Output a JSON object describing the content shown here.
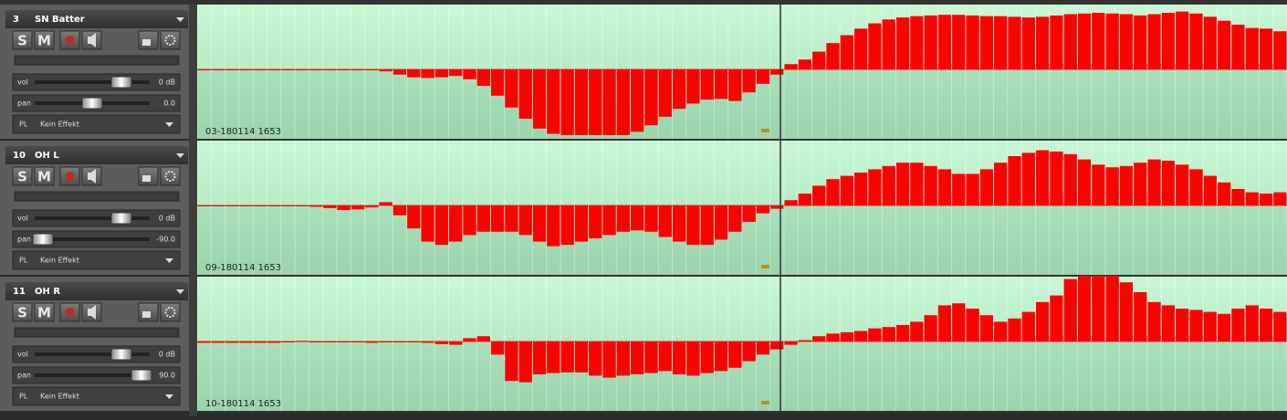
{
  "tracks": [
    {
      "number": "3",
      "name": "SN Batter",
      "solo": "S",
      "mute": "M",
      "vol_label": "vol",
      "vol": "0 dB",
      "pan_label": "pan",
      "pan": "0.0",
      "pl": "PL",
      "effect": "Kein Effekt",
      "clip_label": "03-180114  1653",
      "samples": [
        -1,
        -1,
        -1,
        -1,
        -1,
        -1,
        -1,
        -1,
        -1,
        -1,
        -1,
        -1,
        -1,
        -3,
        -8,
        -12,
        -13,
        -12,
        -10,
        -15,
        -25,
        -40,
        -58,
        -75,
        -90,
        -98,
        -100,
        -100,
        -100,
        -100,
        -100,
        -95,
        -85,
        -72,
        -60,
        -52,
        -46,
        -45,
        -48,
        -35,
        -22,
        -8,
        8,
        15,
        27,
        40,
        52,
        62,
        70,
        76,
        79,
        81,
        82,
        83,
        83,
        82,
        81,
        81,
        80,
        79,
        80,
        82,
        84,
        85,
        86,
        85,
        84,
        82,
        84,
        86,
        88,
        85,
        80,
        74,
        68,
        63,
        62,
        58
      ]
    },
    {
      "number": "10",
      "name": "OH L",
      "solo": "S",
      "mute": "M",
      "vol_label": "vol",
      "vol": "0 dB",
      "pan_label": "pan",
      "pan": "-90.0",
      "pl": "PL",
      "effect": "Kein Effekt",
      "clip_label": "09-180114  1653",
      "samples": [
        -1,
        -1,
        -1,
        -1,
        -1,
        -1,
        -1,
        -1,
        -2,
        -4,
        -7,
        -6,
        -3,
        5,
        -15,
        -35,
        -55,
        -60,
        -55,
        -45,
        -40,
        -40,
        -40,
        -45,
        -55,
        -62,
        -60,
        -55,
        -50,
        -45,
        -40,
        -38,
        -40,
        -48,
        -55,
        -60,
        -60,
        -52,
        -40,
        -25,
        -12,
        -5,
        8,
        18,
        30,
        40,
        45,
        50,
        55,
        60,
        65,
        65,
        60,
        55,
        48,
        48,
        55,
        65,
        75,
        80,
        84,
        82,
        78,
        70,
        62,
        58,
        60,
        65,
        70,
        68,
        62,
        55,
        45,
        35,
        25,
        20,
        18,
        20
      ]
    },
    {
      "number": "11",
      "name": "OH R",
      "solo": "S",
      "mute": "M",
      "vol_label": "vol",
      "vol": "0 dB",
      "pan_label": "pan",
      "pan": "90.0",
      "pl": "PL",
      "effect": "Kein Effekt",
      "clip_label": "10-180114  1653",
      "samples": [
        -2,
        -2,
        -2,
        -2,
        -2,
        -2,
        -1,
        1,
        -1,
        -1,
        -1,
        -1,
        -2,
        -1,
        -1,
        -1,
        -2,
        -4,
        -5,
        5,
        8,
        -20,
        -60,
        -62,
        -50,
        -48,
        -47,
        -47,
        -52,
        -55,
        -52,
        -50,
        -48,
        -45,
        -50,
        -52,
        -48,
        -45,
        -40,
        -30,
        -20,
        -12,
        -5,
        2,
        8,
        12,
        14,
        16,
        20,
        22,
        25,
        30,
        40,
        55,
        58,
        50,
        40,
        30,
        35,
        45,
        60,
        70,
        95,
        100,
        100,
        100,
        90,
        75,
        60,
        55,
        50,
        48,
        45,
        42,
        50,
        55,
        50,
        45
      ]
    }
  ]
}
